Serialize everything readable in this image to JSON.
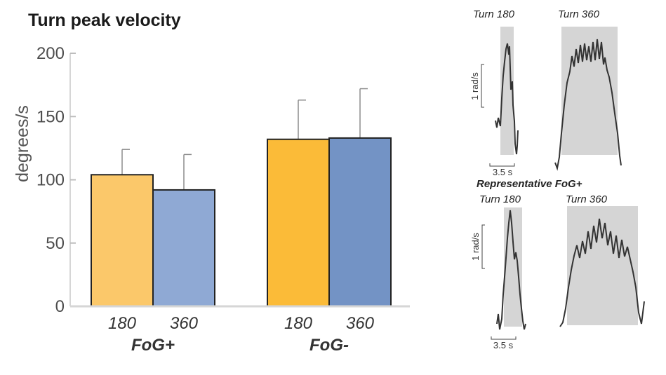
{
  "chart_data": [
    {
      "type": "bar",
      "title": "Turn peak velocity",
      "ylabel": "degrees/s",
      "ylim": [
        0,
        200
      ],
      "yticks": [
        "0",
        "50",
        "100",
        "150",
        "200"
      ],
      "groups": [
        {
          "label": "FoG+",
          "bars": [
            {
              "category": "180",
              "value": 104,
              "error": 20,
              "color": "#fbc86a"
            },
            {
              "category": "360",
              "value": 92,
              "error": 28,
              "color": "#8fa9d4"
            }
          ]
        },
        {
          "label": "FoG-",
          "bars": [
            {
              "category": "180",
              "value": 132,
              "error": 31,
              "color": "#fbbb38"
            },
            {
              "category": "360",
              "value": 133,
              "error": 39,
              "color": "#7393c5"
            }
          ]
        }
      ]
    },
    {
      "type": "line",
      "panels": [
        {
          "title": "Turn 180",
          "scale_y": "1 rad/s",
          "scale_x": "3.5 s"
        },
        {
          "title": "Turn 360"
        }
      ],
      "section_label": "Representative FoG+",
      "panels_bottom": [
        {
          "title": "Turn 180",
          "scale_y": "1 rad/s",
          "scale_x": "3.5 s"
        },
        {
          "title": "Turn 360"
        }
      ]
    }
  ]
}
